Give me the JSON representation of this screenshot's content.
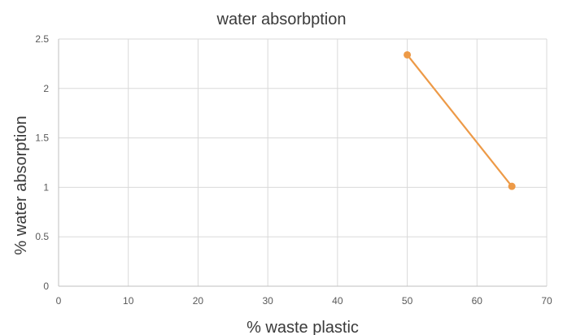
{
  "chart_data": {
    "type": "scatter",
    "title": "water absorbption",
    "xlabel": "% waste plastic",
    "ylabel": "% water absorption",
    "xlim": [
      0,
      70
    ],
    "ylim": [
      0,
      2.5
    ],
    "x_ticks": [
      0,
      10,
      20,
      30,
      40,
      50,
      60,
      70
    ],
    "y_ticks": [
      0,
      0.5,
      1,
      1.5,
      2,
      2.5
    ],
    "y_tick_labels": [
      "0",
      "0.5",
      "1",
      "1.5",
      "2",
      "2.5"
    ],
    "grid": true,
    "series": [
      {
        "color": "#ed9a47",
        "points": [
          {
            "x": 50,
            "y": 2.34
          },
          {
            "x": 65,
            "y": 1.01
          }
        ]
      }
    ]
  }
}
